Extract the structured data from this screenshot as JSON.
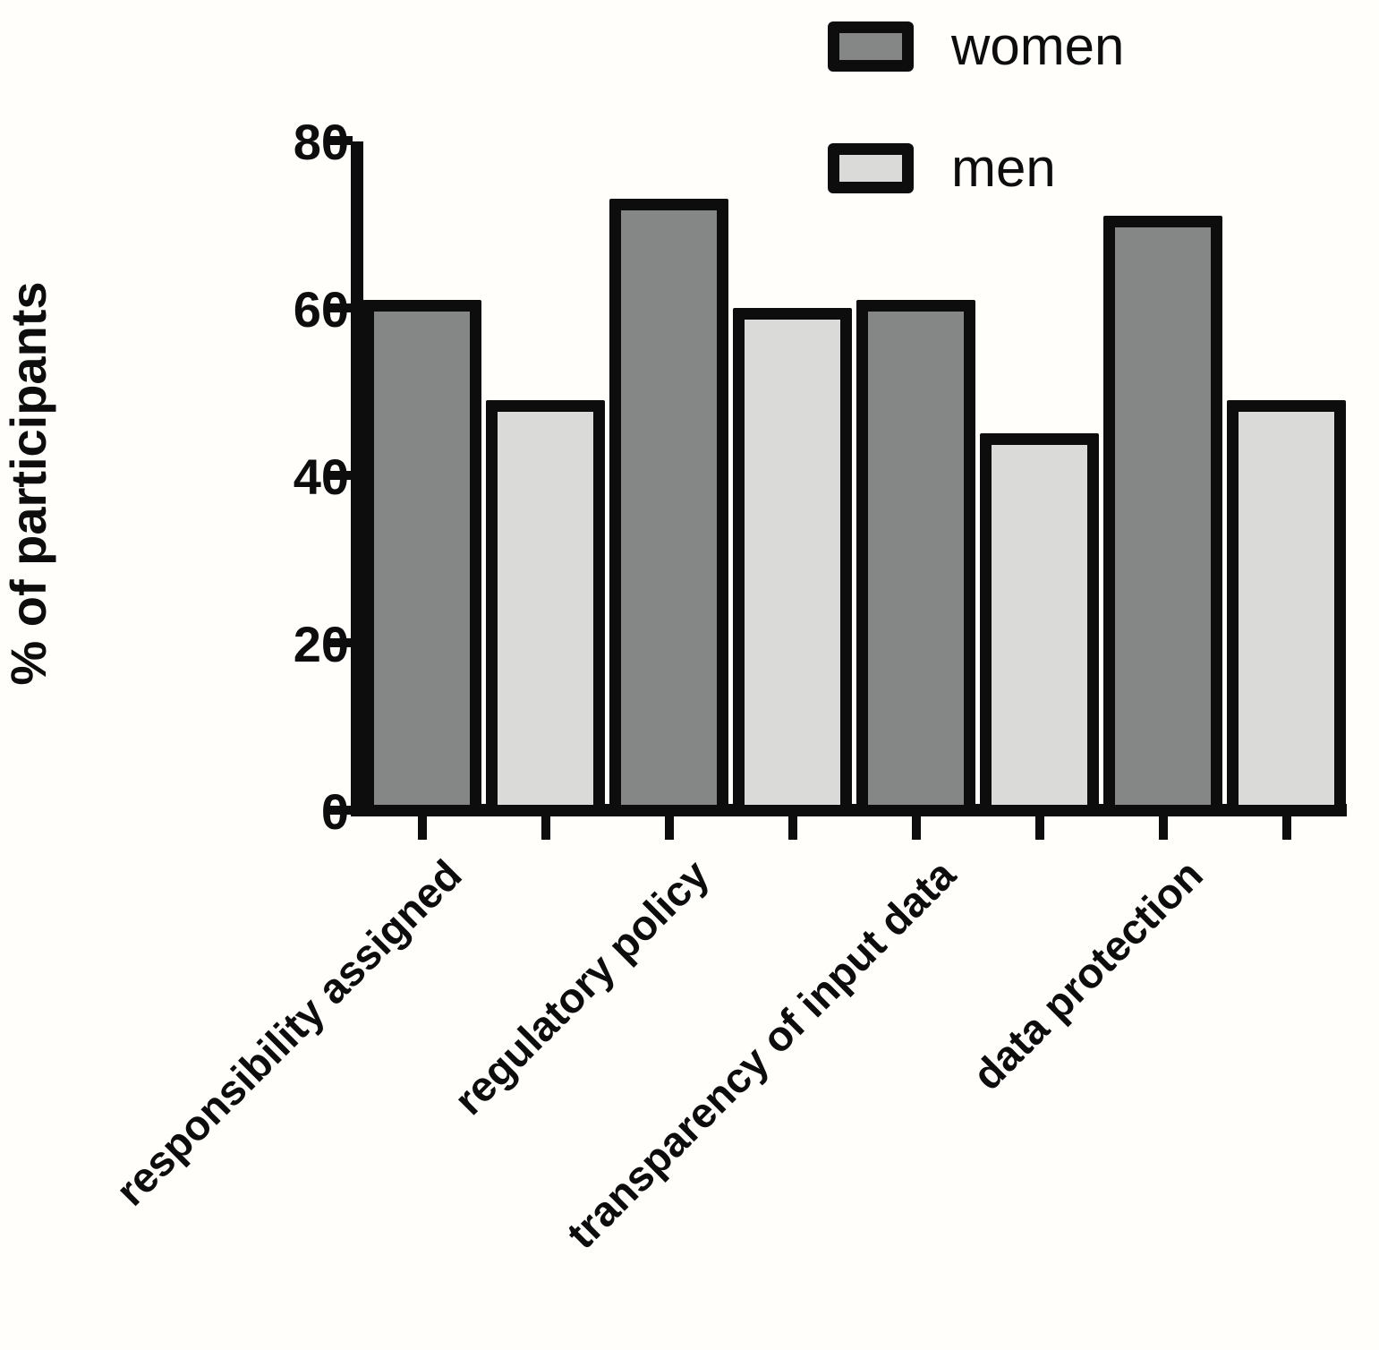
{
  "chart_data": {
    "type": "bar",
    "categories": [
      "responsibility assigned",
      "regulatory policy",
      "transparency of input data",
      "data protection"
    ],
    "series": [
      {
        "name": "women",
        "values": [
          61,
          73,
          61,
          71
        ],
        "color": "#848786"
      },
      {
        "name": "men",
        "values": [
          49,
          60,
          45,
          49
        ],
        "color": "#dadad8"
      }
    ],
    "title": "",
    "xlabel": "",
    "ylabel": "% of participants",
    "ylim": [
      0,
      80
    ],
    "yticks": [
      0,
      20,
      40,
      60,
      80
    ],
    "grid": false,
    "legend_position": "top-center",
    "bar_border_color": "#0d0d0d",
    "background_color": "#fffefb"
  },
  "legend": {
    "items": [
      {
        "label": "women"
      },
      {
        "label": "men"
      }
    ]
  }
}
